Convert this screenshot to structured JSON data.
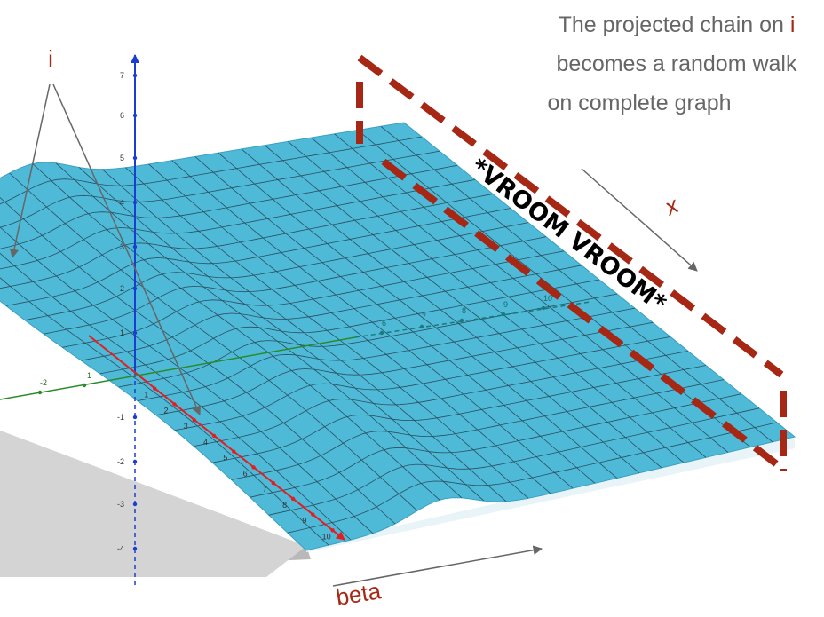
{
  "caption": {
    "line1": "The projected chain on ",
    "line1_highlight": "i",
    "line2": "becomes a random walk",
    "line3": "on complete graph"
  },
  "i_marker": "i",
  "x_label": "x",
  "beta_label": "beta",
  "vroom": "*VROOM VROOM*",
  "axes": {
    "vertical_ticks": [
      "7",
      "6",
      "5",
      "4",
      "3",
      "2",
      "1",
      "-1",
      "-2",
      "-3",
      "-4"
    ],
    "red_ticks": [
      "1",
      "2",
      "3",
      "4",
      "5",
      "6",
      "7",
      "8",
      "9",
      "10"
    ],
    "green_ticks": [
      "-2",
      "-1"
    ],
    "far_ticks": [
      "6",
      "7",
      "8",
      "9",
      "10"
    ]
  }
}
